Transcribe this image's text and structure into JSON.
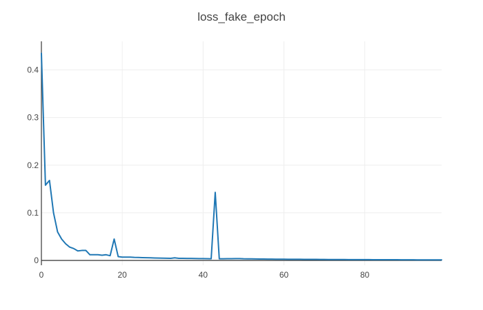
{
  "chart_data": {
    "type": "line",
    "title": "loss_fake_epoch",
    "xlabel": "",
    "ylabel": "",
    "xlim": [
      0,
      99
    ],
    "ylim": [
      -0.01,
      0.46
    ],
    "xticks": [
      0,
      20,
      40,
      60,
      80
    ],
    "xtick_labels": [
      "0",
      "20",
      "40",
      "60",
      "80"
    ],
    "yticks": [
      0,
      0.1,
      0.2,
      0.3,
      0.4
    ],
    "ytick_labels": [
      "0",
      "0.1",
      "0.2",
      "0.3",
      "0.4"
    ],
    "grid": true,
    "series": [
      {
        "color": "#1f77b4",
        "x": [
          0,
          1,
          2,
          3,
          4,
          5,
          6,
          7,
          8,
          9,
          10,
          11,
          12,
          13,
          14,
          15,
          16,
          17,
          18,
          19,
          20,
          21,
          22,
          23,
          24,
          25,
          26,
          27,
          28,
          29,
          30,
          31,
          32,
          33,
          34,
          35,
          36,
          37,
          38,
          39,
          40,
          41,
          42,
          43,
          44,
          45,
          46,
          47,
          48,
          49,
          50,
          51,
          52,
          53,
          54,
          55,
          56,
          57,
          58,
          59,
          60,
          61,
          62,
          63,
          64,
          65,
          66,
          67,
          68,
          69,
          70,
          71,
          72,
          73,
          74,
          75,
          76,
          77,
          78,
          79,
          80,
          81,
          82,
          83,
          84,
          85,
          86,
          87,
          88,
          89,
          90,
          91,
          92,
          93,
          94,
          95,
          96,
          97,
          98,
          99
        ],
        "y": [
          0.435,
          0.158,
          0.168,
          0.1,
          0.06,
          0.045,
          0.035,
          0.028,
          0.025,
          0.02,
          0.021,
          0.021,
          0.012,
          0.012,
          0.012,
          0.011,
          0.012,
          0.01,
          0.045,
          0.008,
          0.007,
          0.007,
          0.007,
          0.0065,
          0.0062,
          0.006,
          0.0058,
          0.0055,
          0.0052,
          0.005,
          0.0048,
          0.0047,
          0.0045,
          0.0055,
          0.0045,
          0.0044,
          0.0043,
          0.0042,
          0.0041,
          0.004,
          0.0039,
          0.0038,
          0.0036,
          0.143,
          0.0035,
          0.0036,
          0.0037,
          0.0038,
          0.0039,
          0.004,
          0.0035,
          0.0034,
          0.0033,
          0.0032,
          0.0031,
          0.003,
          0.0029,
          0.0028,
          0.0027,
          0.0026,
          0.0026,
          0.0025,
          0.0025,
          0.0024,
          0.0024,
          0.0023,
          0.0023,
          0.0022,
          0.0022,
          0.0021,
          0.0021,
          0.002,
          0.002,
          0.002,
          0.0019,
          0.0019,
          0.0018,
          0.0018,
          0.0018,
          0.0017,
          0.0017,
          0.0017,
          0.0016,
          0.0016,
          0.0016,
          0.0015,
          0.0015,
          0.0015,
          0.0015,
          0.0014,
          0.0014,
          0.0014,
          0.0014,
          0.0013,
          0.0013,
          0.0013,
          0.0013,
          0.0012,
          0.0012,
          0.0012
        ]
      }
    ]
  }
}
